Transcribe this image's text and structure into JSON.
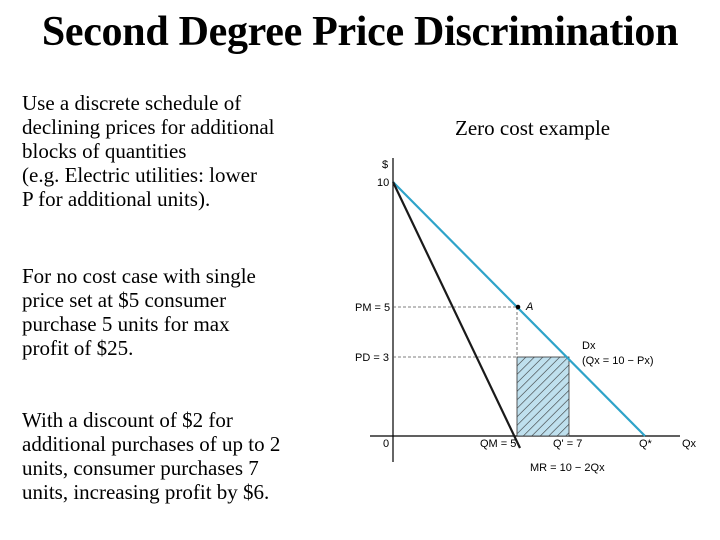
{
  "slide": {
    "title": "Second Degree Price Discrimination",
    "left_text": [
      [
        "Use a discrete schedule of",
        "declining prices for additional",
        "blocks of quantities",
        "(e.g. Electric utilities: lower",
        "P for additional units)."
      ],
      [
        "For no cost case with single",
        "price set at $5 consumer",
        "purchase 5 units for max",
        "profit of $25."
      ],
      [
        "With a discount of $2 for",
        "additional purchases of up to 2",
        "units, consumer purchases 7",
        "units, increasing profit by $6."
      ]
    ],
    "diagram_title": "Zero cost example"
  },
  "diagram": {
    "axis_labels": {
      "y": "$",
      "x": "Qx",
      "origin": "0",
      "y_intercept": "10",
      "pm": "PM = 5",
      "pd": "PD = 3",
      "qm": "QM = 5",
      "qprime": "Q' = 7",
      "qstar": "Q*",
      "point_a": "A",
      "demand_label": "Dx",
      "demand_eq": "(Qx = 10 − Px)",
      "mr_label": "MR = 10 − 2Qx"
    },
    "colors": {
      "demand": "#2ea3c9",
      "mr": "#1a1a1a",
      "shade": "#bfe0ee",
      "hatch": "#333333",
      "axis": "#000000"
    }
  }
}
